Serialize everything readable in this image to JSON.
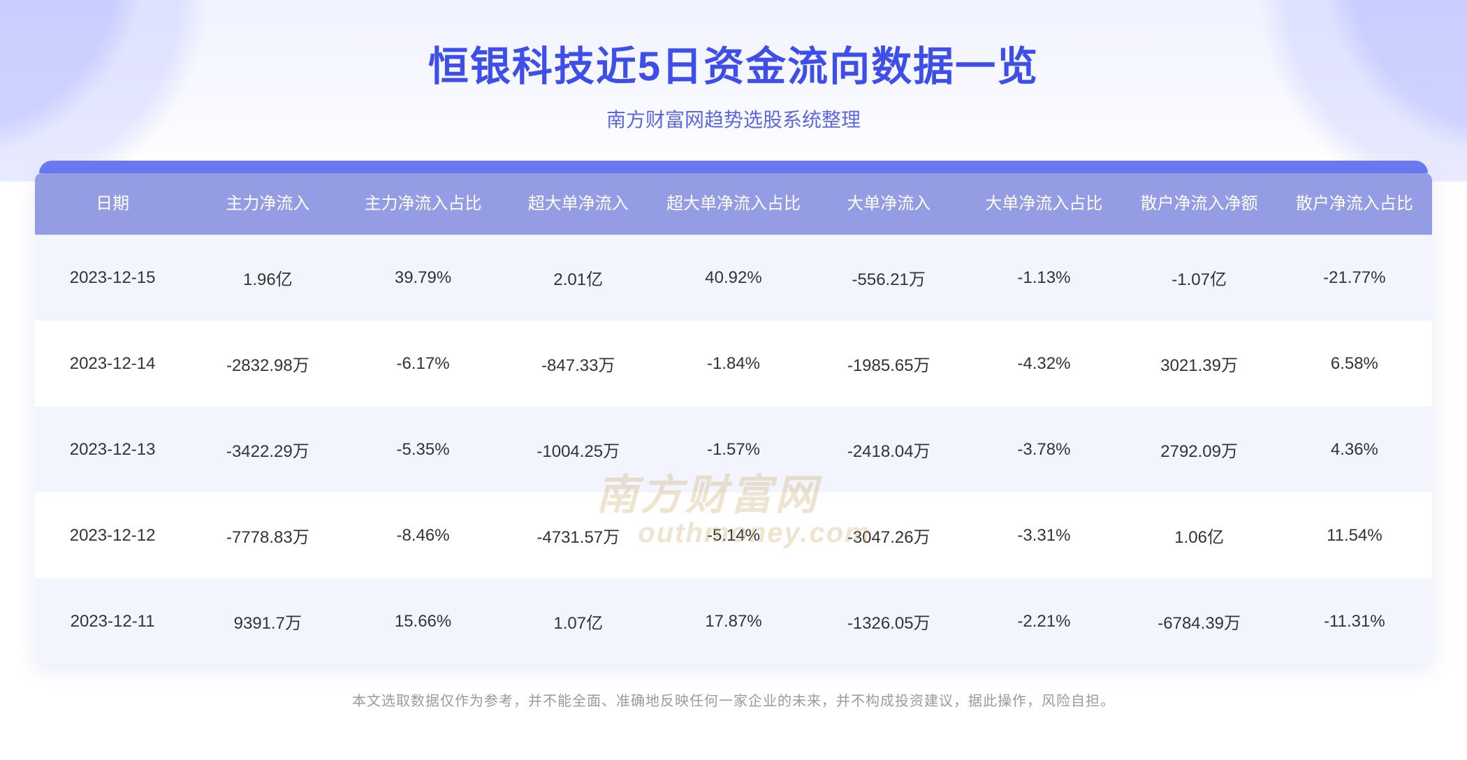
{
  "header": {
    "title": "恒银科技近5日资金流向数据一览",
    "subtitle": "南方财富网趋势选股系统整理",
    "title_color": "#3d4eea",
    "subtitle_color": "#5a68e8",
    "title_fontsize": 58,
    "subtitle_fontsize": 28
  },
  "watermark": {
    "line1": "南方财富网",
    "line2": "outhmoney.com",
    "color": "#c9a25a"
  },
  "table": {
    "header_bg": "#949ce3",
    "header_text_color": "#ffffff",
    "row_even_bg": "#f2f5fd",
    "row_odd_bg": "#ffffff",
    "cell_text_color": "#333333",
    "card_top_bar_color": "#6a7af0",
    "columns": [
      "日期",
      "主力净流入",
      "主力净流入占比",
      "超大单净流入",
      "超大单净流入占比",
      "大单净流入",
      "大单净流入占比",
      "散户净流入净额",
      "散户净流入占比"
    ],
    "rows": [
      [
        "2023-12-15",
        "1.96亿",
        "39.79%",
        "2.01亿",
        "40.92%",
        "-556.21万",
        "-1.13%",
        "-1.07亿",
        "-21.77%"
      ],
      [
        "2023-12-14",
        "-2832.98万",
        "-6.17%",
        "-847.33万",
        "-1.84%",
        "-1985.65万",
        "-4.32%",
        "3021.39万",
        "6.58%"
      ],
      [
        "2023-12-13",
        "-3422.29万",
        "-5.35%",
        "-1004.25万",
        "-1.57%",
        "-2418.04万",
        "-3.78%",
        "2792.09万",
        "4.36%"
      ],
      [
        "2023-12-12",
        "-7778.83万",
        "-8.46%",
        "-4731.57万",
        "-5.14%",
        "-3047.26万",
        "-3.31%",
        "1.06亿",
        "11.54%"
      ],
      [
        "2023-12-11",
        "9391.7万",
        "15.66%",
        "1.07亿",
        "17.87%",
        "-1326.05万",
        "-2.21%",
        "-6784.39万",
        "-11.31%"
      ]
    ]
  },
  "disclaimer": "本文选取数据仅作为参考，并不能全面、准确地反映任何一家企业的未来，并不构成投资建议，据此操作，风险自担。"
}
